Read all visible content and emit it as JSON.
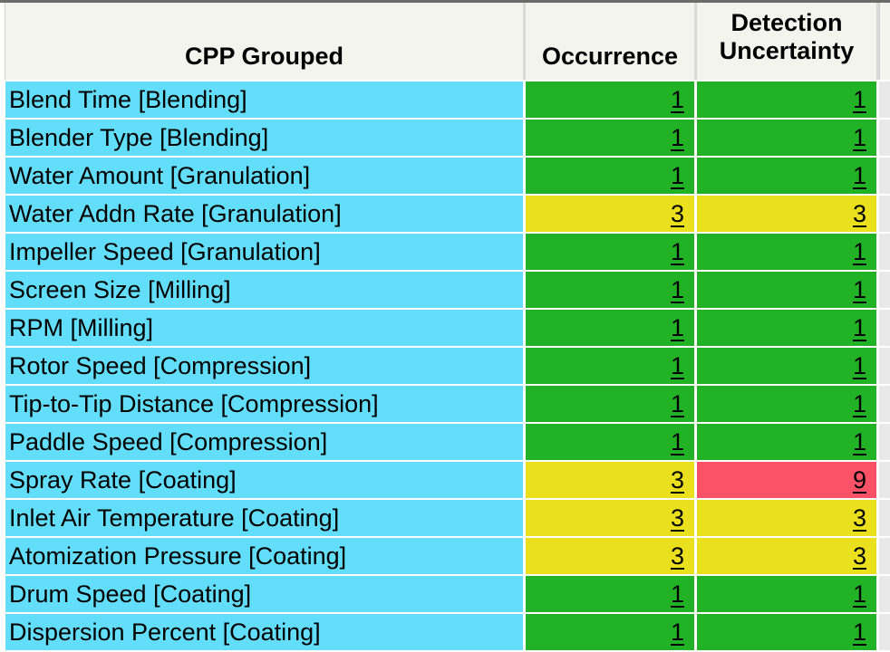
{
  "header": {
    "col1": "CPP Grouped",
    "col2": "Occurrence",
    "col3_line1": "Detection",
    "col3_line2": "Uncertainty"
  },
  "colors": {
    "cyan_name_cell": "#63DEFA",
    "green": "#21B226",
    "yellow": "#EBE01E",
    "red": "#FB5268",
    "header_bg": "#F4F4EF",
    "top_border": "#6B6B6B",
    "header_grid": "#D9D9D9",
    "stub_column": "#E9E9E9"
  },
  "rows": [
    {
      "name": "Blend Time [Blending]",
      "occurrence": "1",
      "occurrence_color": "green",
      "detection": "1",
      "detection_color": "green"
    },
    {
      "name": "Blender Type [Blending]",
      "occurrence": "1",
      "occurrence_color": "green",
      "detection": "1",
      "detection_color": "green"
    },
    {
      "name": "Water Amount [Granulation]",
      "occurrence": "1",
      "occurrence_color": "green",
      "detection": "1",
      "detection_color": "green"
    },
    {
      "name": "Water Addn Rate [Granulation]",
      "occurrence": "3",
      "occurrence_color": "yellow",
      "detection": "3",
      "detection_color": "yellow"
    },
    {
      "name": "Impeller Speed [Granulation]",
      "occurrence": "1",
      "occurrence_color": "green",
      "detection": "1",
      "detection_color": "green"
    },
    {
      "name": "Screen Size [Milling]",
      "occurrence": "1",
      "occurrence_color": "green",
      "detection": "1",
      "detection_color": "green"
    },
    {
      "name": "RPM [Milling]",
      "occurrence": "1",
      "occurrence_color": "green",
      "detection": "1",
      "detection_color": "green"
    },
    {
      "name": "Rotor Speed [Compression]",
      "occurrence": "1",
      "occurrence_color": "green",
      "detection": "1",
      "detection_color": "green"
    },
    {
      "name": "Tip-to-Tip Distance [Compression]",
      "occurrence": "1",
      "occurrence_color": "green",
      "detection": "1",
      "detection_color": "green"
    },
    {
      "name": "Paddle Speed [Compression]",
      "occurrence": "1",
      "occurrence_color": "green",
      "detection": "1",
      "detection_color": "green"
    },
    {
      "name": "Spray Rate [Coating]",
      "occurrence": "3",
      "occurrence_color": "yellow",
      "detection": "9",
      "detection_color": "red"
    },
    {
      "name": "Inlet Air Temperature [Coating]",
      "occurrence": "3",
      "occurrence_color": "yellow",
      "detection": "3",
      "detection_color": "yellow"
    },
    {
      "name": "Atomization Pressure [Coating]",
      "occurrence": "3",
      "occurrence_color": "yellow",
      "detection": "3",
      "detection_color": "yellow"
    },
    {
      "name": "Drum Speed [Coating]",
      "occurrence": "1",
      "occurrence_color": "green",
      "detection": "1",
      "detection_color": "green"
    },
    {
      "name": "Dispersion Percent [Coating]",
      "occurrence": "1",
      "occurrence_color": "green",
      "detection": "1",
      "detection_color": "green"
    }
  ]
}
